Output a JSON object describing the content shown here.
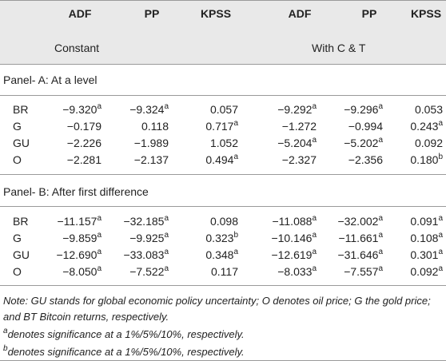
{
  "header": {
    "columns": [
      "ADF",
      "PP",
      "KPSS",
      "ADF",
      "PP",
      "KPSS"
    ],
    "groups": [
      "Constant",
      "With C & T"
    ]
  },
  "panels": [
    {
      "title": "Panel- A: At a level",
      "rows": [
        {
          "label": "BR",
          "cells": [
            {
              "value": "−9.320",
              "sup": "a"
            },
            {
              "value": "−9.324",
              "sup": "a"
            },
            {
              "value": "0.057"
            },
            {
              "value": "−9.292",
              "sup": "a"
            },
            {
              "value": "−9.296",
              "sup": "a"
            },
            {
              "value": "0.053"
            }
          ]
        },
        {
          "label": "G",
          "cells": [
            {
              "value": "−0.179"
            },
            {
              "value": "0.118"
            },
            {
              "value": "0.717",
              "sup": "a"
            },
            {
              "value": "−1.272"
            },
            {
              "value": "−0.994"
            },
            {
              "value": "0.243",
              "sup": "a"
            }
          ]
        },
        {
          "label": "GU",
          "cells": [
            {
              "value": "−2.226"
            },
            {
              "value": "−1.989"
            },
            {
              "value": "1.052"
            },
            {
              "value": "−5.204",
              "sup": "a"
            },
            {
              "value": "−5.202",
              "sup": "a"
            },
            {
              "value": "0.092"
            }
          ]
        },
        {
          "label": "O",
          "cells": [
            {
              "value": "−2.281"
            },
            {
              "value": "−2.137"
            },
            {
              "value": "0.494",
              "sup": "a"
            },
            {
              "value": "−2.327"
            },
            {
              "value": "−2.356"
            },
            {
              "value": "0.180",
              "sup": "b"
            }
          ]
        }
      ]
    },
    {
      "title": "Panel- B: After first difference",
      "rows": [
        {
          "label": "BR",
          "cells": [
            {
              "value": "−11.157",
              "sup": "a"
            },
            {
              "value": "−32.185",
              "sup": "a"
            },
            {
              "value": "0.098"
            },
            {
              "value": "−11.088",
              "sup": "a"
            },
            {
              "value": "−32.002",
              "sup": "a"
            },
            {
              "value": "0.091",
              "sup": "a"
            }
          ]
        },
        {
          "label": "G",
          "cells": [
            {
              "value": "−9.859",
              "sup": "a"
            },
            {
              "value": "−9.925",
              "sup": "a"
            },
            {
              "value": "0.323",
              "sup": "b"
            },
            {
              "value": "−10.146",
              "sup": "a"
            },
            {
              "value": "−11.661",
              "sup": "a"
            },
            {
              "value": "0.108",
              "sup": "a"
            }
          ]
        },
        {
          "label": "GU",
          "cells": [
            {
              "value": "−12.690",
              "sup": "a"
            },
            {
              "value": "−33.083",
              "sup": "a"
            },
            {
              "value": "0.348",
              "sup": "a"
            },
            {
              "value": "−12.619",
              "sup": "a"
            },
            {
              "value": "−31.646",
              "sup": "a"
            },
            {
              "value": "0.301",
              "sup": "a"
            }
          ]
        },
        {
          "label": "O",
          "cells": [
            {
              "value": "−8.050",
              "sup": "a"
            },
            {
              "value": "−7.522",
              "sup": "a"
            },
            {
              "value": "0.117"
            },
            {
              "value": "−8.033",
              "sup": "a"
            },
            {
              "value": "−7.557",
              "sup": "a"
            },
            {
              "value": "0.092",
              "sup": "a"
            }
          ]
        }
      ]
    }
  ],
  "notes": [
    {
      "text": "Note: GU stands for global economic policy uncertainty; O denotes oil price; G the gold price; and BT Bitcoin returns, respectively."
    },
    {
      "sup": "a",
      "text": "denotes significance at a 1%/5%/10%, respectively."
    },
    {
      "sup": "b",
      "text": "denotes significance at a 1%/5%/10%, respectively."
    }
  ]
}
